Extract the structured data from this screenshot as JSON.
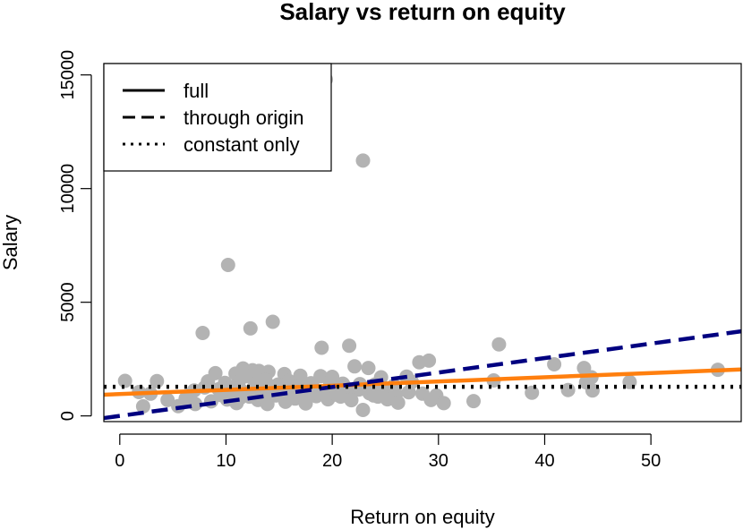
{
  "chart_data": {
    "type": "scatter",
    "title": "Salary vs return on equity",
    "xlabel": "Return on equity",
    "ylabel": "Salary",
    "xlim": [
      -1.5,
      58.5
    ],
    "ylim": [
      -250,
      15500
    ],
    "xticks": [
      0,
      10,
      20,
      30,
      40,
      50
    ],
    "yticks": [
      0,
      5000,
      10000,
      15000
    ],
    "grid": false,
    "legend_position": "top-left",
    "point_color": "#b3b3b3",
    "points": [
      [
        19.4,
        14800
      ],
      [
        22.9,
        11230
      ],
      [
        10.2,
        6640
      ],
      [
        14.4,
        4140
      ],
      [
        12.3,
        3850
      ],
      [
        7.8,
        3650
      ],
      [
        35.7,
        3150
      ],
      [
        21.6,
        3090
      ],
      [
        19.0,
        3000
      ],
      [
        29.1,
        2430
      ],
      [
        28.2,
        2360
      ],
      [
        40.9,
        2270
      ],
      [
        22.1,
        2180
      ],
      [
        23.4,
        2110
      ],
      [
        43.7,
        2110
      ],
      [
        56.3,
        2030
      ],
      [
        11.6,
        2090
      ],
      [
        12.5,
        2010
      ],
      [
        13.1,
        1980
      ],
      [
        14.0,
        1940
      ],
      [
        9.0,
        1880
      ],
      [
        10.9,
        1860
      ],
      [
        15.5,
        1840
      ],
      [
        17.0,
        1770
      ],
      [
        18.9,
        1750
      ],
      [
        20.0,
        1720
      ],
      [
        24.6,
        1700
      ],
      [
        27.0,
        1730
      ],
      [
        44.4,
        1700
      ],
      [
        0.5,
        1540
      ],
      [
        3.5,
        1530
      ],
      [
        35.2,
        1560
      ],
      [
        48.0,
        1490
      ],
      [
        43.9,
        1480
      ],
      [
        12.0,
        1750
      ],
      [
        13.7,
        1600
      ],
      [
        15.9,
        1540
      ],
      [
        8.3,
        1520
      ],
      [
        9.9,
        1450
      ],
      [
        11.2,
        1500
      ],
      [
        12.8,
        1420
      ],
      [
        14.9,
        1380
      ],
      [
        16.4,
        1420
      ],
      [
        18.0,
        1440
      ],
      [
        19.8,
        1470
      ],
      [
        21.0,
        1420
      ],
      [
        22.6,
        1400
      ],
      [
        24.0,
        1380
      ],
      [
        25.8,
        1330
      ],
      [
        27.5,
        1500
      ],
      [
        1.8,
        1050
      ],
      [
        2.9,
        980
      ],
      [
        4.5,
        700
      ],
      [
        6.2,
        760
      ],
      [
        7.0,
        1120
      ],
      [
        8.0,
        1250
      ],
      [
        9.3,
        1170
      ],
      [
        10.5,
        1270
      ],
      [
        11.5,
        1100
      ],
      [
        12.6,
        1230
      ],
      [
        13.4,
        1090
      ],
      [
        14.3,
        1150
      ],
      [
        15.1,
        1020
      ],
      [
        16.0,
        1210
      ],
      [
        17.0,
        980
      ],
      [
        18.2,
        1260
      ],
      [
        19.3,
        1080
      ],
      [
        20.3,
        1180
      ],
      [
        21.4,
        1050
      ],
      [
        22.5,
        1160
      ],
      [
        23.5,
        1000
      ],
      [
        24.8,
        1110
      ],
      [
        26.0,
        960
      ],
      [
        27.2,
        1040
      ],
      [
        28.5,
        980
      ],
      [
        29.8,
        900
      ],
      [
        38.8,
        1020
      ],
      [
        42.2,
        1140
      ],
      [
        44.5,
        1120
      ],
      [
        2.2,
        420
      ],
      [
        5.5,
        430
      ],
      [
        7.1,
        520
      ],
      [
        8.6,
        640
      ],
      [
        10.1,
        720
      ],
      [
        11.0,
        560
      ],
      [
        12.2,
        850
      ],
      [
        13.0,
        700
      ],
      [
        13.9,
        520
      ],
      [
        14.7,
        900
      ],
      [
        15.6,
        620
      ],
      [
        16.5,
        760
      ],
      [
        17.5,
        550
      ],
      [
        18.5,
        870
      ],
      [
        19.6,
        730
      ],
      [
        20.8,
        850
      ],
      [
        21.8,
        690
      ],
      [
        22.9,
        260
      ],
      [
        23.9,
        900
      ],
      [
        25.2,
        730
      ],
      [
        26.2,
        580
      ],
      [
        29.3,
        700
      ],
      [
        30.5,
        560
      ],
      [
        33.3,
        650
      ],
      [
        9.5,
        920
      ],
      [
        11.8,
        950
      ],
      [
        14.2,
        1300
      ],
      [
        16.8,
        1320
      ],
      [
        19.9,
        1000
      ],
      [
        12.9,
        1350
      ],
      [
        17.3,
        870
      ],
      [
        10.8,
        1030
      ],
      [
        15.3,
        1250
      ],
      [
        18.6,
        1000
      ],
      [
        21.2,
        1280
      ],
      [
        23.0,
        1230
      ],
      [
        13.6,
        830
      ],
      [
        16.2,
        960
      ],
      [
        20.4,
        930
      ],
      [
        24.3,
        850
      ],
      [
        11.3,
        780
      ]
    ],
    "series": [
      {
        "name": "full",
        "style": "solid",
        "color": "#ff7f0e",
        "intercept": 960,
        "slope": 18.5
      },
      {
        "name": "through origin",
        "style": "dashed",
        "color": "#000080",
        "intercept": 0,
        "slope": 63.6
      },
      {
        "name": "constant only",
        "style": "dotted",
        "color": "#000000",
        "intercept": 1281,
        "slope": 0
      }
    ]
  }
}
